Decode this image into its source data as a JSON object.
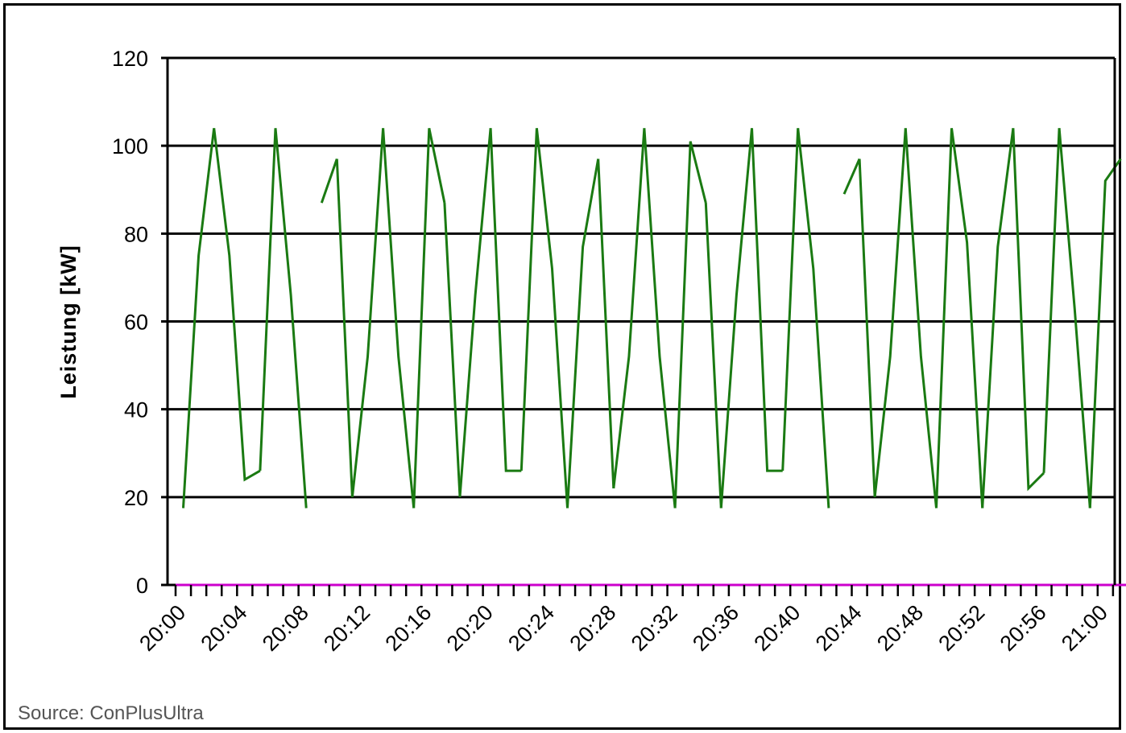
{
  "chart_data": {
    "type": "line",
    "title": "",
    "xlabel": "",
    "ylabel": "Leistung [kW]",
    "ylim": [
      0,
      120
    ],
    "yticks": [
      0,
      20,
      40,
      60,
      80,
      100,
      120
    ],
    "xlim_minutes": [
      0,
      62
    ],
    "xtick_labels": [
      "20:00",
      "20:04",
      "20:08",
      "20:12",
      "20:16",
      "20:20",
      "20:24",
      "20:28",
      "20:32",
      "20:36",
      "20:40",
      "20:44",
      "20:48",
      "20:52",
      "20:56",
      "21:00"
    ],
    "grid": "horizontal",
    "series": [
      {
        "color": "#1a7a12",
        "segments": [
          [
            [
              0.5,
              17.5
            ],
            [
              1.5,
              75
            ],
            [
              2.5,
              104
            ]
          ],
          [
            [
              2.5,
              104
            ],
            [
              3.5,
              75
            ],
            [
              4.5,
              24
            ],
            [
              5.5,
              26
            ]
          ],
          [
            [
              5.5,
              26
            ],
            [
              6.5,
              104
            ]
          ],
          [
            [
              6.5,
              104
            ],
            [
              7.5,
              66
            ],
            [
              8.5,
              17.5
            ]
          ],
          [
            [
              9.5,
              87
            ],
            [
              10.5,
              97
            ]
          ],
          [
            [
              10.5,
              97
            ],
            [
              11.5,
              20
            ]
          ],
          [
            [
              11.5,
              20
            ],
            [
              12.5,
              52
            ],
            [
              13.5,
              104
            ]
          ],
          [
            [
              13.5,
              104
            ],
            [
              14.5,
              52
            ],
            [
              15.5,
              17.5
            ]
          ],
          [
            [
              15.5,
              17.5
            ],
            [
              16.5,
              104
            ]
          ],
          [
            [
              16.5,
              104
            ],
            [
              17.5,
              87
            ]
          ],
          [
            [
              17.5,
              87
            ],
            [
              18.5,
              20
            ]
          ],
          [
            [
              18.5,
              20
            ],
            [
              19.5,
              66
            ],
            [
              20.5,
              104
            ]
          ],
          [
            [
              20.5,
              104
            ],
            [
              21.5,
              26
            ],
            [
              22.5,
              26
            ]
          ],
          [
            [
              22.5,
              26
            ],
            [
              23.5,
              104
            ]
          ],
          [
            [
              23.5,
              104
            ],
            [
              24.5,
              72
            ],
            [
              25.5,
              17.5
            ]
          ],
          [
            [
              25.5,
              17.5
            ],
            [
              26.5,
              77
            ],
            [
              27.5,
              97
            ]
          ],
          [
            [
              27.5,
              97
            ],
            [
              28.5,
              22
            ]
          ],
          [
            [
              28.5,
              22
            ],
            [
              29.5,
              52
            ],
            [
              30.5,
              104
            ]
          ],
          [
            [
              30.5,
              104
            ],
            [
              31.5,
              52
            ],
            [
              32.5,
              17.5
            ]
          ],
          [
            [
              32.5,
              17.5
            ],
            [
              33.5,
              101
            ],
            [
              34.5,
              87
            ]
          ],
          [
            [
              34.5,
              87
            ],
            [
              35.5,
              17.5
            ]
          ],
          [
            [
              35.5,
              17.5
            ],
            [
              36.5,
              66
            ],
            [
              37.5,
              104
            ]
          ],
          [
            [
              37.5,
              104
            ],
            [
              38.5,
              26
            ],
            [
              39.5,
              26
            ]
          ],
          [
            [
              39.5,
              26
            ],
            [
              40.5,
              104
            ]
          ],
          [
            [
              40.5,
              104
            ],
            [
              41.5,
              72
            ],
            [
              42.5,
              17.5
            ]
          ],
          [
            [
              43.5,
              89
            ],
            [
              44.5,
              97
            ]
          ],
          [
            [
              44.5,
              97
            ],
            [
              45.5,
              20
            ]
          ],
          [
            [
              45.5,
              20
            ],
            [
              46.5,
              52
            ],
            [
              47.5,
              104
            ]
          ],
          [
            [
              47.5,
              104
            ],
            [
              48.5,
              52
            ],
            [
              49.5,
              17.5
            ]
          ],
          [
            [
              49.5,
              17.5
            ],
            [
              50.5,
              104
            ]
          ],
          [
            [
              50.5,
              104
            ],
            [
              51.5,
              78
            ],
            [
              52.5,
              17.5
            ]
          ],
          [
            [
              52.5,
              17.5
            ],
            [
              53.5,
              77
            ],
            [
              54.5,
              104
            ]
          ],
          [
            [
              54.5,
              104
            ],
            [
              55.5,
              22
            ],
            [
              56.5,
              25.5
            ]
          ],
          [
            [
              56.5,
              25.5
            ],
            [
              57.5,
              104
            ]
          ],
          [
            [
              57.5,
              104
            ],
            [
              58.5,
              63
            ],
            [
              59.5,
              17.5
            ]
          ],
          [
            [
              59.5,
              17.5
            ],
            [
              60.5,
              92
            ],
            [
              61.5,
              97
            ]
          ]
        ]
      },
      {
        "color": "#cc00cc",
        "segments": [
          [
            [
              0,
              0
            ],
            [
              62,
              0
            ]
          ]
        ]
      }
    ]
  },
  "source_note": "Source: ConPlusUltra"
}
